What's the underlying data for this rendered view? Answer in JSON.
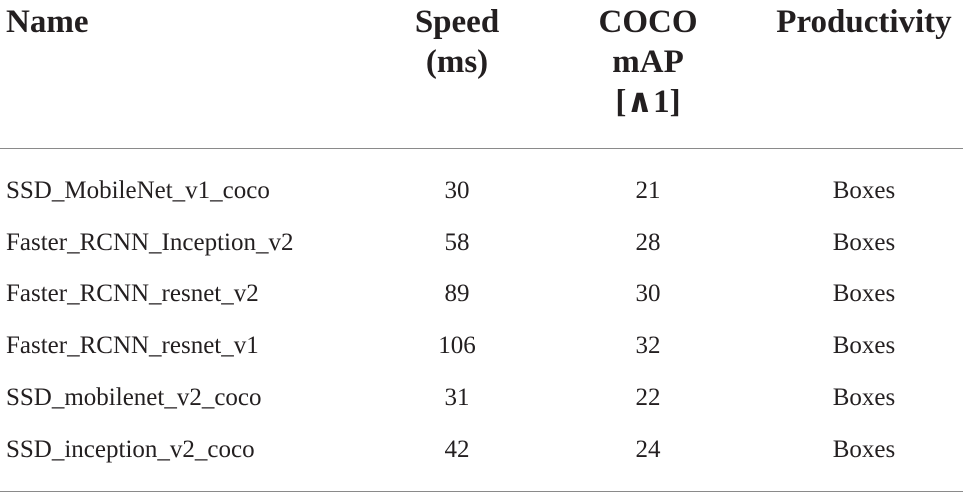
{
  "table": {
    "headers": {
      "name": "Name",
      "speed": "Speed\n(ms)",
      "coco_map": "COCO\nmAP\n[∧1]",
      "productivity": "Productivity"
    },
    "rows": [
      {
        "name": "SSD_MobileNet_v1_coco",
        "speed": "30",
        "coco_map": "21",
        "productivity": "Boxes"
      },
      {
        "name": "Faster_RCNN_Inception_v2",
        "speed": "58",
        "coco_map": "28",
        "productivity": "Boxes"
      },
      {
        "name": "Faster_RCNN_resnet_v2",
        "speed": "89",
        "coco_map": "30",
        "productivity": "Boxes"
      },
      {
        "name": "Faster_RCNN_resnet_v1",
        "speed": "106",
        "coco_map": "32",
        "productivity": "Boxes"
      },
      {
        "name": "SSD_mobilenet_v2_coco",
        "speed": "31",
        "coco_map": "22",
        "productivity": "Boxes"
      },
      {
        "name": "SSD_inception_v2_coco",
        "speed": "42",
        "coco_map": "24",
        "productivity": "Boxes"
      }
    ]
  },
  "colors": {
    "text": "#231f20",
    "rule": "#8a8a8a"
  }
}
